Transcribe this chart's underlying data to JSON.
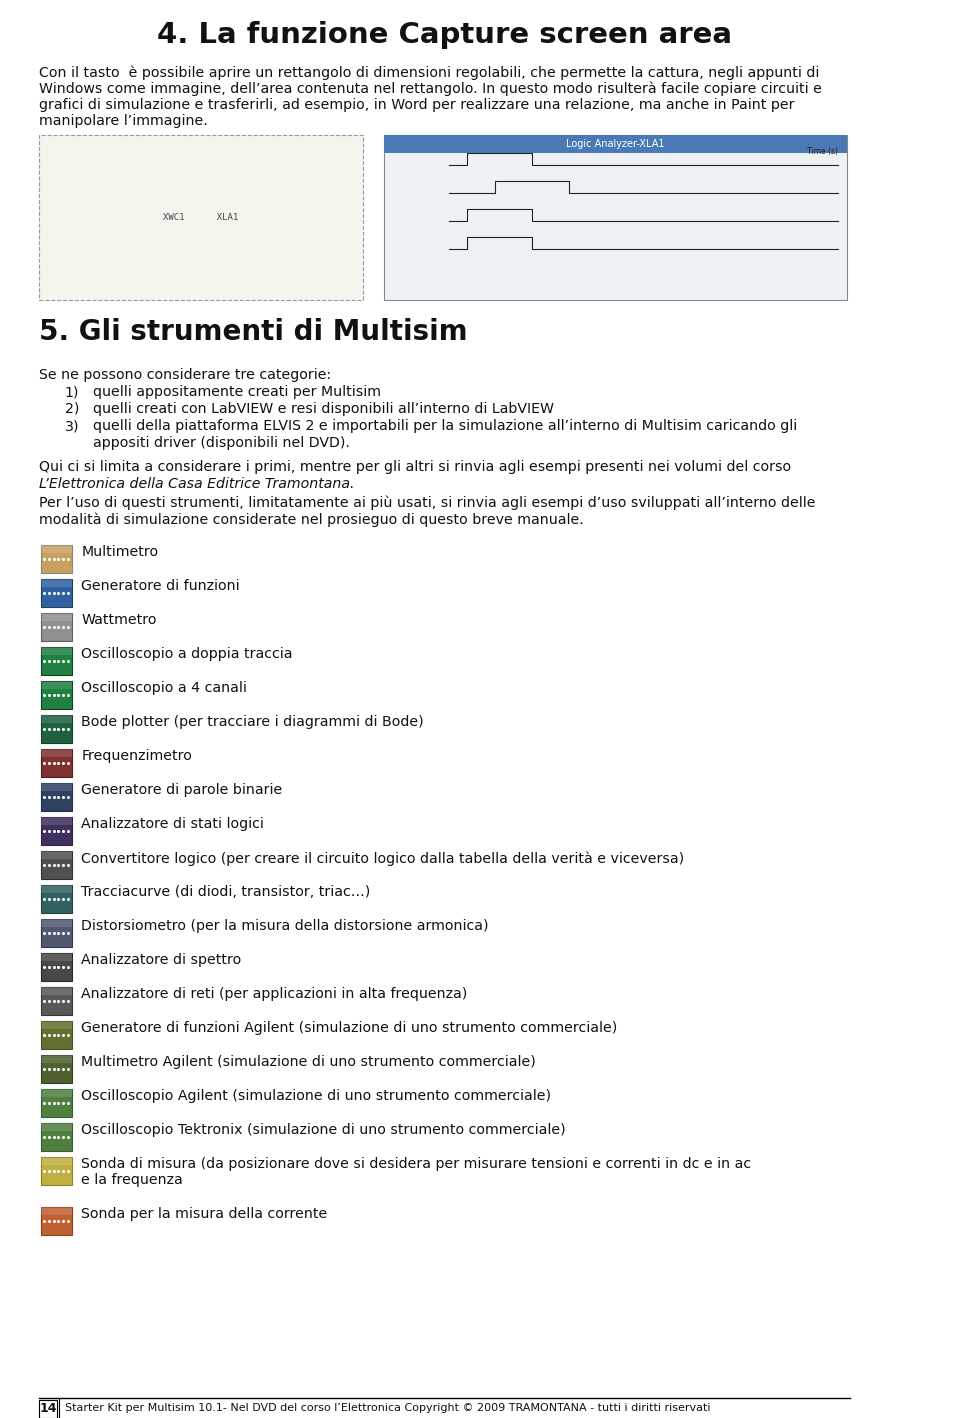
{
  "title": "4. La funzione Capture screen area",
  "section5_title": "5. Gli strumenti di Multisim",
  "bg_color": "#ffffff",
  "page_number": "14",
  "footer_text": "Starter Kit per Multisim 10.1- Nel DVD del corso l’Elettronica Copyright © 2009 TRAMONTANA - tutti i diritti riservati",
  "instruments": [
    "Multimetro",
    "Generatore di funzioni",
    "Wattmetro",
    "Oscilloscopio a doppia traccia",
    "Oscilloscopio a 4 canali",
    "Bode plotter (per tracciare i diagrammi di Bode)",
    "Frequenzimetro",
    "Generatore di parole binarie",
    "Analizzatore di stati logici",
    "Convertitore logico (per creare il circuito logico dalla tabella della verità e viceversa)",
    "Tracciacurve (di diodi, transistor, triac…)",
    "Distorsiometro (per la misura della distorsione armonica)",
    "Analizzatore di spettro",
    "Analizzatore di reti (per applicazioni in alta frequenza)",
    "Generatore di funzioni Agilent (simulazione di uno strumento commerciale)",
    "Multimetro Agilent (simulazione di uno strumento commerciale)",
    "Oscilloscopio Agilent (simulazione di uno strumento commerciale)",
    "Oscilloscopio Tektronix (simulazione di uno strumento commerciale)",
    "Sonda di misura (da posizionare dove si desidera per misurare tensioni e correnti in dc e in ac\ne la frequenza",
    "Sonda per la misura della corrente"
  ]
}
